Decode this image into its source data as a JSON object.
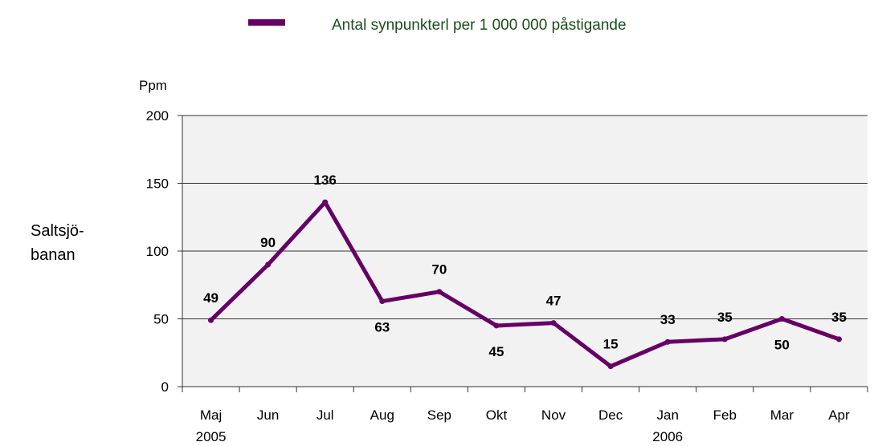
{
  "legend": {
    "label": "Antal synpunkterl per 1 000 000 påstigande",
    "color": "#660066",
    "text_color": "#1a4d1a"
  },
  "side_label": {
    "line1": "Saltsjö-",
    "line2": "banan"
  },
  "chart_data": {
    "type": "line",
    "ylabel": "Ppm",
    "xlabel": "",
    "ylim": [
      0,
      200
    ],
    "yticks": [
      0,
      50,
      100,
      150,
      200
    ],
    "categories": [
      "Maj",
      "Jun",
      "Jul",
      "Aug",
      "Sep",
      "Okt",
      "Nov",
      "Dec",
      "Jan",
      "Feb",
      "Mar",
      "Apr"
    ],
    "category_sublabels": [
      "2005",
      "",
      "",
      "",
      "",
      "",
      "",
      "",
      "2006",
      "",
      "",
      ""
    ],
    "series": [
      {
        "name": "Antal synpunkterl per 1 000 000 påstigande",
        "values": [
          49,
          90,
          136,
          63,
          70,
          45,
          47,
          15,
          33,
          35,
          50,
          35
        ],
        "color": "#660066"
      }
    ],
    "data_label_positions": [
      "above",
      "above",
      "above",
      "below",
      "above",
      "below",
      "above",
      "above",
      "above",
      "above",
      "below",
      "above"
    ],
    "grid": true,
    "plot_background": "#f2f2f2",
    "legend_position": "top"
  }
}
